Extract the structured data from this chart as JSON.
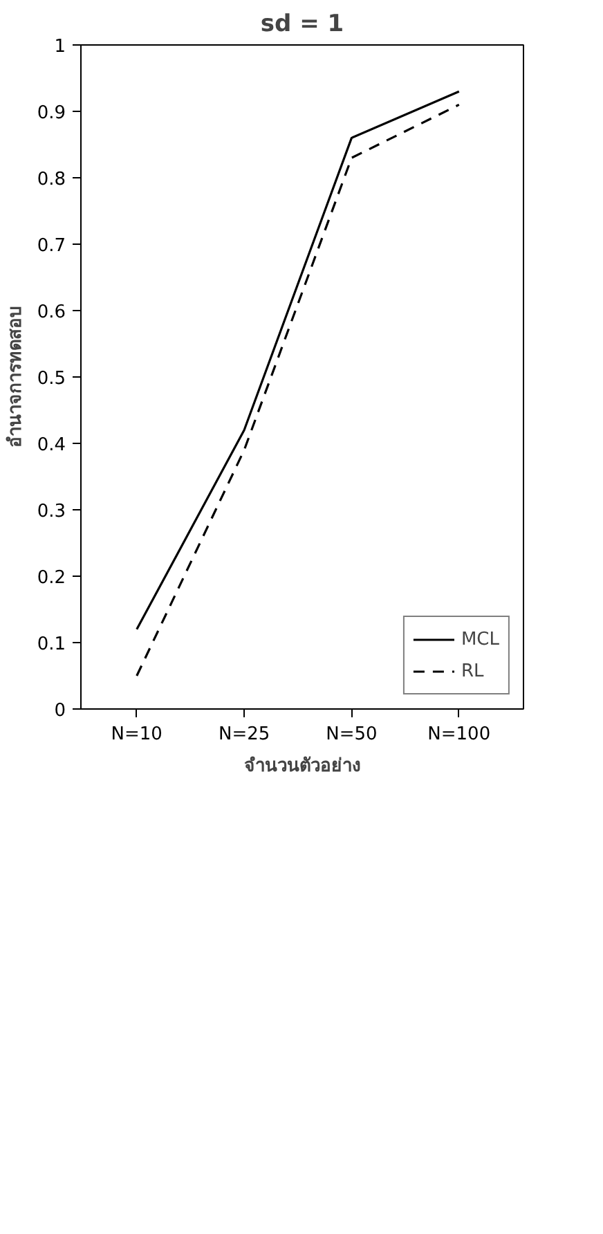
{
  "chart_data": {
    "type": "line",
    "title": "sd = 1",
    "xlabel": "จำนวนตัวอย่าง",
    "ylabel": "อำนาจการทดสอบ",
    "categories": [
      "N=10",
      "N=25",
      "N=50",
      "N=100"
    ],
    "series": [
      {
        "name": "MCL",
        "color": "#000000",
        "line_style": "solid",
        "values": [
          0.12,
          0.42,
          0.86,
          0.93
        ]
      },
      {
        "name": "RL",
        "color": "#000000",
        "line_style": "dashed",
        "values": [
          0.05,
          0.39,
          0.83,
          0.91
        ]
      }
    ],
    "ylim": [
      0,
      1
    ],
    "yticks": [
      0,
      0.1,
      0.2,
      0.3,
      0.4,
      0.5,
      0.6,
      0.7,
      0.8,
      0.9,
      1
    ],
    "legend": "bottom right"
  }
}
